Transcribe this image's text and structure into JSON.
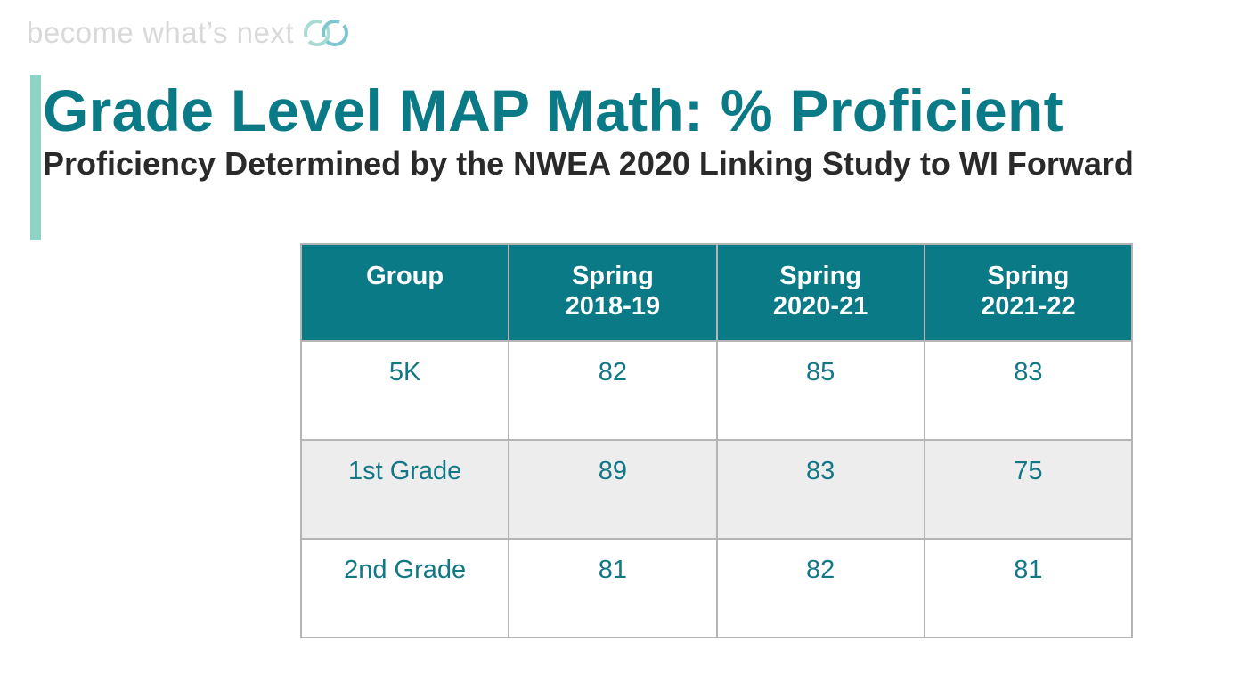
{
  "tagline": "become what’s next",
  "logo_icon": "interlocking-rings-icon",
  "title": "Grade Level MAP Math: % Proficient",
  "subtitle": "Proficiency Determined by the NWEA 2020 Linking Study to WI Forward",
  "colors": {
    "brand_teal": "#0b7a87",
    "accent_mint": "#8fd3c6",
    "alt_row": "#ededed"
  },
  "table": {
    "headers": [
      {
        "line1": "Group",
        "line2": ""
      },
      {
        "line1": "Spring",
        "line2": "2018-19"
      },
      {
        "line1": "Spring",
        "line2": "2020-21"
      },
      {
        "line1": "Spring",
        "line2": "2021-22"
      }
    ],
    "rows": [
      [
        "5K",
        "82",
        "85",
        "83"
      ],
      [
        "1st Grade",
        "89",
        "83",
        "75"
      ],
      [
        "2nd Grade",
        "81",
        "82",
        "81"
      ]
    ]
  }
}
